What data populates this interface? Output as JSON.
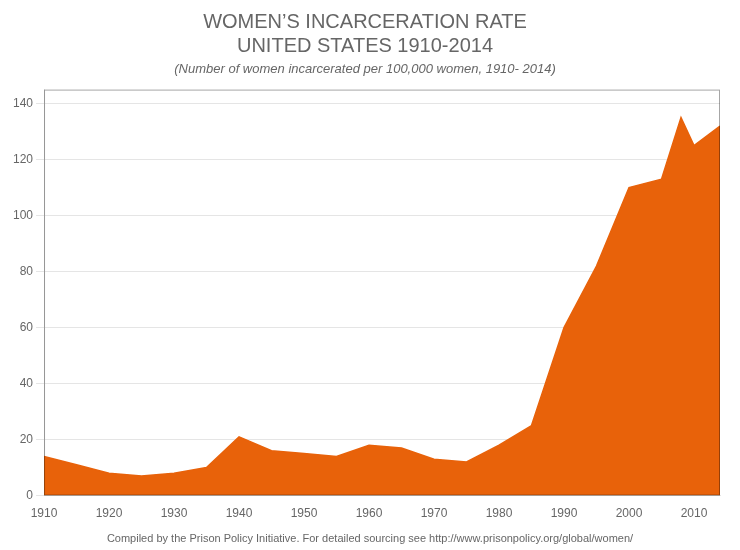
{
  "chart_data": {
    "type": "area",
    "title": [
      "WOMEN’S INCARCERATION RATE",
      "UNITED STATES 1910-2014"
    ],
    "subtitle": "(Number of women incarcerated per 100,000 women, 1910- 2014)",
    "annotations": [
      "Compiled by the Prison Policy Initiative. For detailed sourcing see http://www.prisonpolicy.org/global/women/"
    ],
    "x": [
      1910,
      1915,
      1920,
      1925,
      1930,
      1935,
      1940,
      1945,
      1950,
      1955,
      1960,
      1965,
      1970,
      1975,
      1980,
      1985,
      1990,
      1995,
      2000,
      2005,
      2008,
      2010,
      2014
    ],
    "values": [
      14,
      11,
      8,
      7,
      8,
      10,
      21,
      16,
      15,
      14,
      18,
      17,
      13,
      12,
      18,
      25,
      60,
      82,
      110,
      113,
      135,
      125,
      132
    ],
    "color": "#E8620A",
    "xlim": [
      1910,
      2014
    ],
    "xticks": [
      1910,
      1920,
      1930,
      1940,
      1950,
      1960,
      1970,
      1980,
      1990,
      2000,
      2010
    ],
    "ylim": [
      0,
      145
    ],
    "yticks": [
      0,
      20,
      40,
      60,
      80,
      100,
      120,
      140
    ],
    "grid": true
  }
}
